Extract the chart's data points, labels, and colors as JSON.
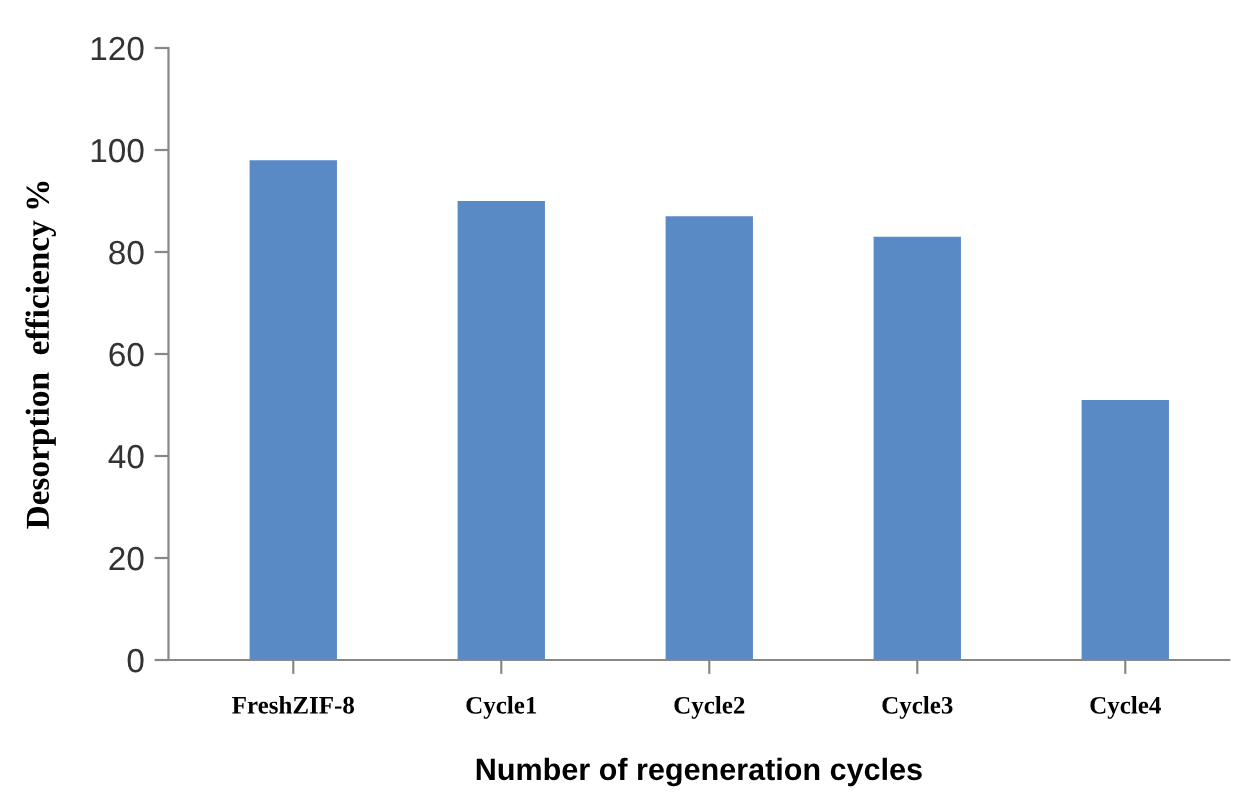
{
  "chart_data": {
    "type": "bar",
    "xlabel": "Number of regeneration cycles",
    "ylabel": "Desorption  efficiency %",
    "categories": [
      "FreshZIF-8",
      "Cycle1",
      "Cycle2",
      "Cycle3",
      "Cycle4"
    ],
    "values": [
      98,
      90,
      87,
      83,
      51
    ],
    "color": "#5a8ac6",
    "ylim": [
      0,
      120
    ],
    "yticks": [
      0,
      20,
      40,
      60,
      80,
      100,
      120
    ],
    "grid": false
  }
}
